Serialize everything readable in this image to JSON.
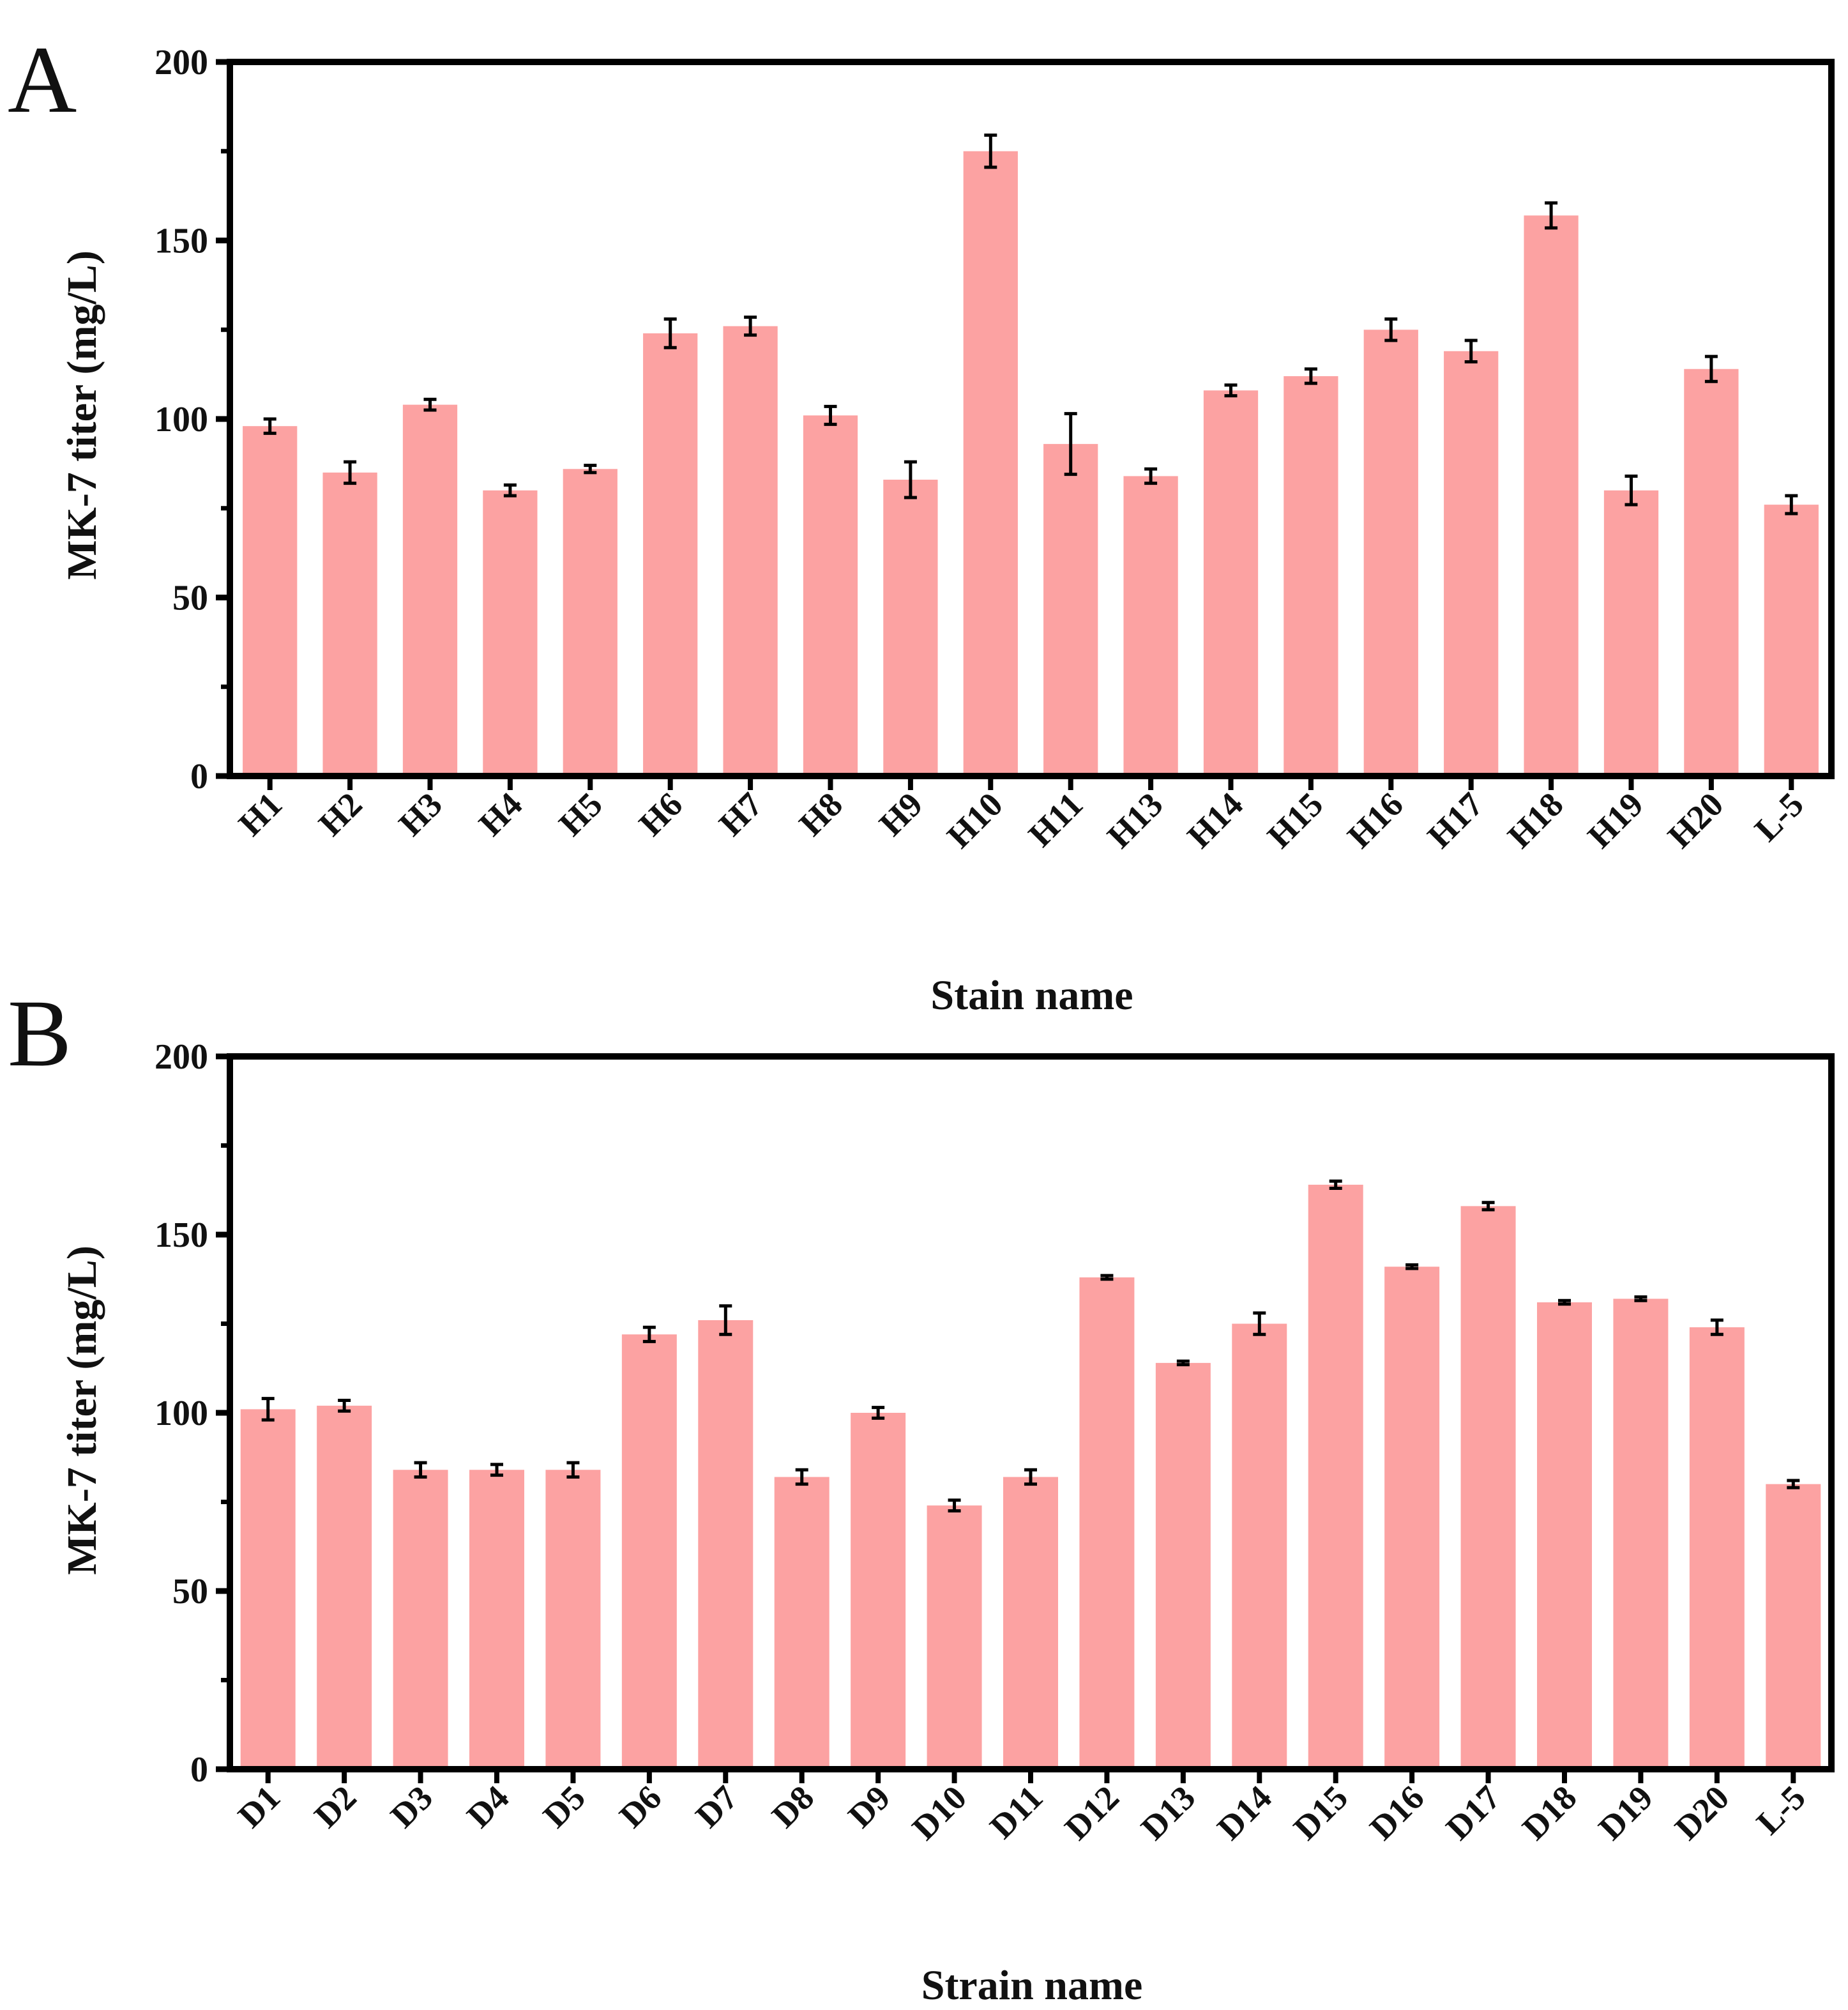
{
  "figure": {
    "bar_color": "#fca2a2",
    "axis_color": "#000000",
    "text_color": "#111111"
  },
  "chart_data": [
    {
      "type": "bar",
      "panel_label": "A",
      "title": "",
      "xlabel": "Stain name",
      "ylabel": "MK-7 titer (mg/L)",
      "ylim": [
        0,
        200
      ],
      "yticks": [
        0,
        50,
        100,
        150,
        200
      ],
      "ytick_labels": [
        "0",
        "50",
        "100",
        "150",
        "200"
      ],
      "grid": false,
      "error_bars": true,
      "categories": [
        "H1",
        "H2",
        "H3",
        "H4",
        "H5",
        "H6",
        "H7",
        "H8",
        "H9",
        "H10",
        "H11",
        "H13",
        "H14",
        "H15",
        "H16",
        "H17",
        "H18",
        "H19",
        "H20",
        "L-5"
      ],
      "values": [
        98,
        85,
        104,
        80,
        86,
        124,
        126,
        101,
        83,
        175,
        93,
        84,
        108,
        112,
        125,
        119,
        157,
        80,
        114,
        76
      ],
      "errors": [
        2,
        3,
        1.5,
        1.5,
        1,
        4,
        2.5,
        2.5,
        5,
        4.5,
        8.5,
        2,
        1.5,
        2,
        3,
        3,
        3.5,
        4,
        3.5,
        2.5
      ]
    },
    {
      "type": "bar",
      "panel_label": "B",
      "title": "",
      "xlabel": "Strain name",
      "ylabel": "MK-7 titer (mg/L)",
      "ylim": [
        0,
        200
      ],
      "yticks": [
        0,
        50,
        100,
        150,
        200
      ],
      "ytick_labels": [
        "0",
        "50",
        "100",
        "150",
        "200"
      ],
      "grid": false,
      "error_bars": true,
      "categories": [
        "D1",
        "D2",
        "D3",
        "D4",
        "D5",
        "D6",
        "D7",
        "D8",
        "D9",
        "D10",
        "D11",
        "D12",
        "D13",
        "D14",
        "D15",
        "D16",
        "D17",
        "D18",
        "D19",
        "D20",
        "L-5"
      ],
      "values": [
        101,
        102,
        84,
        84,
        84,
        122,
        126,
        82,
        100,
        74,
        82,
        138,
        114,
        125,
        164,
        141,
        158,
        131,
        132,
        124,
        80
      ],
      "errors": [
        3,
        1.5,
        2,
        1.5,
        2,
        2,
        4,
        2,
        1.5,
        1.5,
        2,
        0.5,
        0.5,
        3,
        1,
        0.5,
        1,
        0.5,
        0.5,
        2,
        1
      ]
    }
  ]
}
